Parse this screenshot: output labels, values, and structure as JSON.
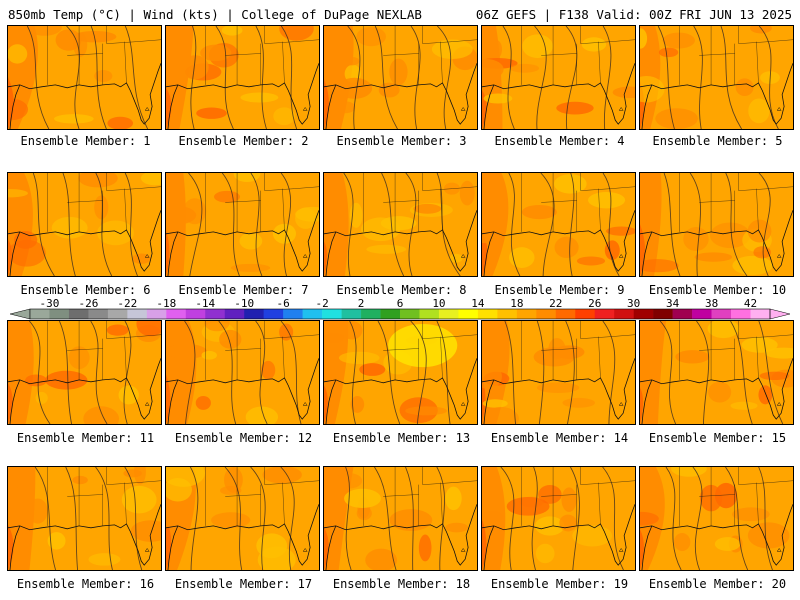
{
  "header": {
    "left": "850mb Temp (°C) | Wind (kts) | College of DuPage NEXLAB",
    "right": "06Z GEFS | F138 Valid: 00Z FRI JUN 13 2025"
  },
  "members": [
    {
      "label": "Ensemble Member: 1"
    },
    {
      "label": "Ensemble Member: 2"
    },
    {
      "label": "Ensemble Member: 3"
    },
    {
      "label": "Ensemble Member: 4"
    },
    {
      "label": "Ensemble Member: 5"
    },
    {
      "label": "Ensemble Member: 6"
    },
    {
      "label": "Ensemble Member: 7"
    },
    {
      "label": "Ensemble Member: 8"
    },
    {
      "label": "Ensemble Member: 9"
    },
    {
      "label": "Ensemble Member: 10"
    },
    {
      "label": "Ensemble Member: 11"
    },
    {
      "label": "Ensemble Member: 12"
    },
    {
      "label": "Ensemble Member: 13"
    },
    {
      "label": "Ensemble Member: 14"
    },
    {
      "label": "Ensemble Member: 15"
    },
    {
      "label": "Ensemble Member: 16"
    },
    {
      "label": "Ensemble Member: 17"
    },
    {
      "label": "Ensemble Member: 18"
    },
    {
      "label": "Ensemble Member: 19"
    },
    {
      "label": "Ensemble Member: 20"
    }
  ],
  "colorbar": {
    "ticks": [
      "-30",
      "-26",
      "-22",
      "-18",
      "-14",
      "-10",
      "-6",
      "-2",
      "2",
      "6",
      "10",
      "14",
      "18",
      "22",
      "26",
      "30",
      "34",
      "38",
      "42"
    ],
    "colors": [
      "#9aa89a",
      "#7f8f80",
      "#6e6e6e",
      "#8a8a8a",
      "#a8a8a8",
      "#c6c6d8",
      "#d8a0e8",
      "#e060f0",
      "#c040e0",
      "#9030d0",
      "#6020c0",
      "#2020b0",
      "#2040e0",
      "#2080f0",
      "#20c0f0",
      "#20e0e0",
      "#20c0a0",
      "#20b060",
      "#30a020",
      "#70c020",
      "#b0e020",
      "#e8f020",
      "#ffff00",
      "#ffe000",
      "#ffc000",
      "#ffa500",
      "#ff8c00",
      "#ff6a00",
      "#ff4000",
      "#f02020",
      "#d01010",
      "#a00000",
      "#800000",
      "#a00050",
      "#c000a0",
      "#e040c0",
      "#ff70e0",
      "#ffb0f0"
    ],
    "palette": {
      "base": "#ffa500",
      "warm": "#ff8c00",
      "hot": "#ff6a00",
      "hottest": "#f05020",
      "cool": "#ffc000",
      "coolest": "#ffe000",
      "contour": "#3a2a20",
      "coast": "#111111"
    }
  }
}
